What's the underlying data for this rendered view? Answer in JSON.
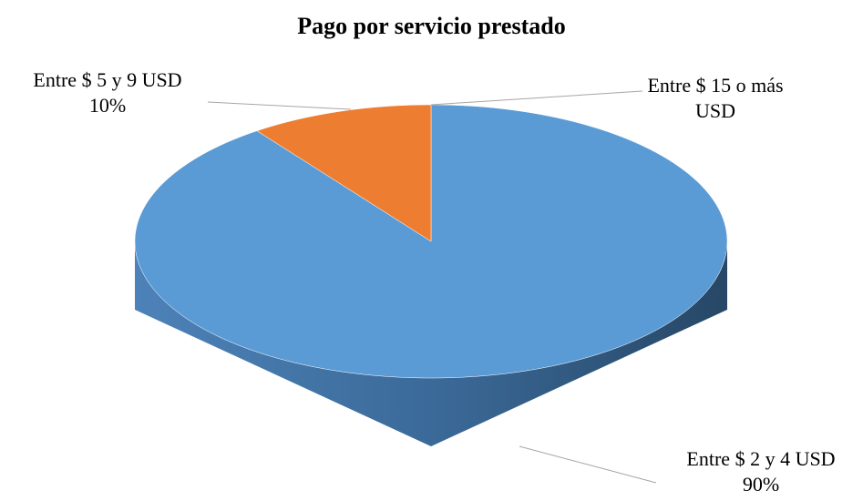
{
  "chart_data": {
    "type": "pie",
    "title": "Pago por servicio prestado",
    "categories": [
      "Entre $ 2 y 4 USD",
      "Entre $ 5 y 9 USD",
      "Entre $ 15 o más USD"
    ],
    "values": [
      90,
      10,
      0
    ],
    "value_labels": [
      "90%",
      "10%",
      null
    ],
    "colors": [
      "#5b9bd5",
      "#ed7d31",
      "#a5a5a5"
    ]
  }
}
